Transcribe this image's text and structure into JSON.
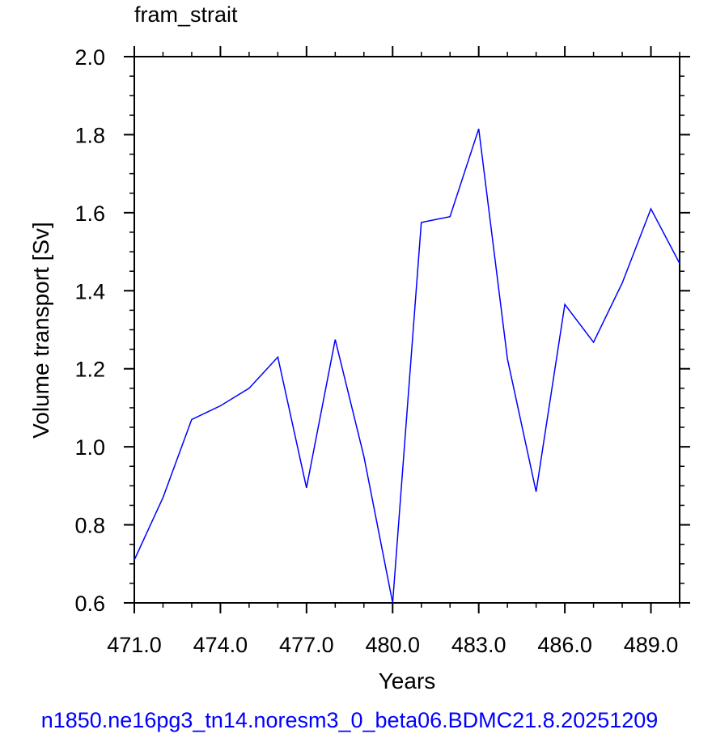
{
  "chart_data": {
    "type": "line",
    "title": "fram_strait",
    "xlabel": "Years",
    "ylabel": "Volume transport [Sv]",
    "xlim": [
      471.0,
      490.0
    ],
    "ylim": [
      0.6,
      2.0
    ],
    "xticks": [
      471.0,
      474.0,
      477.0,
      480.0,
      483.0,
      486.0,
      489.0
    ],
    "xtick_labels": [
      "471.0",
      "474.0",
      "477.0",
      "480.0",
      "483.0",
      "486.0",
      "489.0"
    ],
    "yticks": [
      0.6,
      0.8,
      1.0,
      1.2,
      1.4,
      1.6,
      1.8,
      2.0
    ],
    "ytick_labels": [
      "0.6",
      "0.8",
      "1.0",
      "1.2",
      "1.4",
      "1.6",
      "1.8",
      "2.0"
    ],
    "grid": false,
    "series": [
      {
        "color": "#0000ff",
        "x": [
          471,
          472,
          473,
          474,
          475,
          476,
          477,
          478,
          479,
          480,
          481,
          482,
          483,
          484,
          485,
          486,
          487,
          488,
          489,
          490
        ],
        "y": [
          0.71,
          0.87,
          1.07,
          1.105,
          1.15,
          1.23,
          0.895,
          1.275,
          0.975,
          0.6,
          1.575,
          1.59,
          1.815,
          1.225,
          0.885,
          1.365,
          1.268,
          1.42,
          1.61,
          1.47
        ]
      }
    ]
  },
  "caption": "n1850.ne16pg3_tn14.noresm3_0_beta06.BDMC21.8.20251209"
}
